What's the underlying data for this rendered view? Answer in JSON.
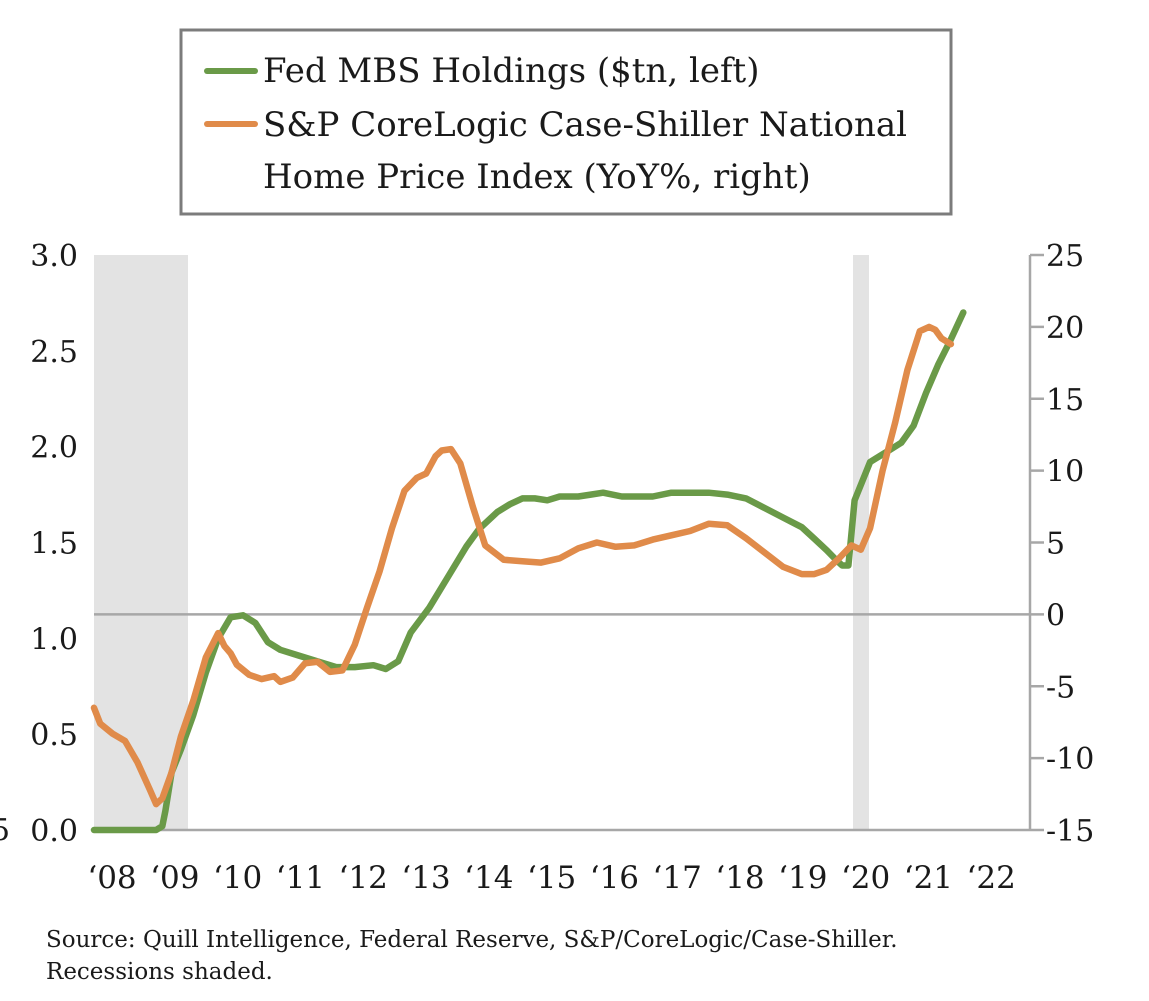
{
  "chart_data": {
    "type": "line",
    "legend": {
      "placement": "top-center",
      "entries": [
        {
          "lines": [
            "Fed MBS Holdings ($tn, left)"
          ],
          "color": "#6a9a48"
        },
        {
          "lines": [
            "S&P CoreLogic Case-Shiller National",
            "Home Price Index (YoY%, right)"
          ],
          "color": "#e08b4a"
        }
      ]
    },
    "left_axis": {
      "ylim": [
        0,
        3.0
      ],
      "ticks": [
        "0.0",
        "0.5",
        "1.0",
        "1.5",
        "2.0",
        "2.5",
        "3.0"
      ],
      "partial_label": "5"
    },
    "right_axis": {
      "ylim": [
        -15,
        25
      ],
      "ticks": [
        "-15",
        "-10",
        "-5",
        "0",
        "5",
        "10",
        "15",
        "20",
        "25"
      ]
    },
    "x_axis": {
      "xlim": [
        2008,
        2022.5
      ],
      "ticks": [
        "‘08",
        "‘09",
        "‘10",
        "‘11",
        "‘12",
        "‘13",
        "‘14",
        "‘15",
        "‘16",
        "‘17",
        "‘18",
        "‘19",
        "‘20",
        "‘21",
        "‘22"
      ]
    },
    "recessions": [
      [
        2008.0,
        2009.5
      ],
      [
        2020.0,
        2020.25
      ]
    ],
    "zero_line": 0,
    "series": [
      {
        "name": "Fed MBS Holdings ($tn, left)",
        "axis": "left",
        "color": "#6a9a48",
        "x": [
          2008.0,
          2008.5,
          2009.0,
          2009.1,
          2009.15,
          2009.25,
          2009.4,
          2009.6,
          2009.8,
          2010.0,
          2010.2,
          2010.4,
          2010.6,
          2010.8,
          2011.0,
          2011.3,
          2011.6,
          2011.9,
          2012.2,
          2012.5,
          2012.7,
          2012.9,
          2013.1,
          2013.4,
          2013.7,
          2014.0,
          2014.2,
          2014.5,
          2014.7,
          2014.9,
          2015.1,
          2015.3,
          2015.5,
          2015.8,
          2016.0,
          2016.2,
          2016.5,
          2016.8,
          2017.0,
          2017.3,
          2017.6,
          2017.9,
          2018.2,
          2018.5,
          2018.8,
          2019.1,
          2019.4,
          2019.6,
          2019.8,
          2019.95,
          2020.05,
          2020.15,
          2020.25,
          2020.5,
          2020.7,
          2020.85,
          2021.0,
          2021.2,
          2021.4,
          2021.6,
          2021.8,
          2022.0
        ],
        "values": [
          0.0,
          0.0,
          0.0,
          0.02,
          0.1,
          0.3,
          0.42,
          0.6,
          0.82,
          1.0,
          1.11,
          1.12,
          1.08,
          0.98,
          0.94,
          0.91,
          0.88,
          0.85,
          0.85,
          0.86,
          0.84,
          0.88,
          1.03,
          1.16,
          1.32,
          1.48,
          1.57,
          1.66,
          1.7,
          1.73,
          1.73,
          1.72,
          1.74,
          1.74,
          1.75,
          1.76,
          1.74,
          1.74,
          1.74,
          1.76,
          1.76,
          1.76,
          1.75,
          1.73,
          1.68,
          1.63,
          1.58,
          1.52,
          1.46,
          1.41,
          1.38,
          1.38,
          1.72,
          1.92,
          1.96,
          1.99,
          2.02,
          2.11,
          2.28,
          2.43,
          2.56,
          2.7
        ]
      },
      {
        "name": "S&P CoreLogic Case-Shiller National Home Price Index (YoY%, right)",
        "axis": "right",
        "color": "#e08b4a",
        "x": [
          2008.0,
          2008.1,
          2008.3,
          2008.5,
          2008.7,
          2008.9,
          2009.0,
          2009.1,
          2009.25,
          2009.4,
          2009.6,
          2009.8,
          2010.0,
          2010.1,
          2010.2,
          2010.3,
          2010.5,
          2010.7,
          2010.9,
          2011.0,
          2011.2,
          2011.4,
          2011.6,
          2011.8,
          2012.0,
          2012.2,
          2012.4,
          2012.6,
          2012.8,
          2013.0,
          2013.2,
          2013.35,
          2013.5,
          2013.6,
          2013.75,
          2013.9,
          2014.1,
          2014.3,
          2014.6,
          2014.9,
          2015.2,
          2015.5,
          2015.8,
          2016.1,
          2016.4,
          2016.7,
          2017.0,
          2017.3,
          2017.6,
          2017.9,
          2018.2,
          2018.5,
          2018.8,
          2019.1,
          2019.4,
          2019.6,
          2019.8,
          2020.0,
          2020.2,
          2020.35,
          2020.5,
          2020.7,
          2020.9,
          2021.1,
          2021.3,
          2021.45,
          2021.55,
          2021.65,
          2021.8
        ],
        "values": [
          -6.5,
          -7.6,
          -8.3,
          -8.8,
          -10.3,
          -12.2,
          -13.2,
          -12.8,
          -11.0,
          -8.5,
          -6.0,
          -3.0,
          -1.3,
          -2.2,
          -2.7,
          -3.5,
          -4.2,
          -4.5,
          -4.3,
          -4.7,
          -4.4,
          -3.4,
          -3.3,
          -4.0,
          -3.9,
          -2.1,
          0.5,
          3.0,
          6.0,
          8.6,
          9.5,
          9.8,
          11.0,
          11.4,
          11.5,
          10.5,
          7.5,
          4.8,
          3.8,
          3.7,
          3.6,
          3.9,
          4.6,
          5.0,
          4.7,
          4.8,
          5.2,
          5.5,
          5.8,
          6.3,
          6.2,
          5.3,
          4.3,
          3.3,
          2.8,
          2.8,
          3.1,
          3.9,
          4.8,
          4.5,
          6.0,
          10.0,
          13.3,
          17.0,
          19.7,
          20.0,
          19.8,
          19.2,
          18.8
        ]
      }
    ]
  },
  "source": {
    "line1": "Source: Quill Intelligence, Federal Reserve, S&P/CoreLogic/Case-Shiller.",
    "line2": "Recessions shaded."
  }
}
